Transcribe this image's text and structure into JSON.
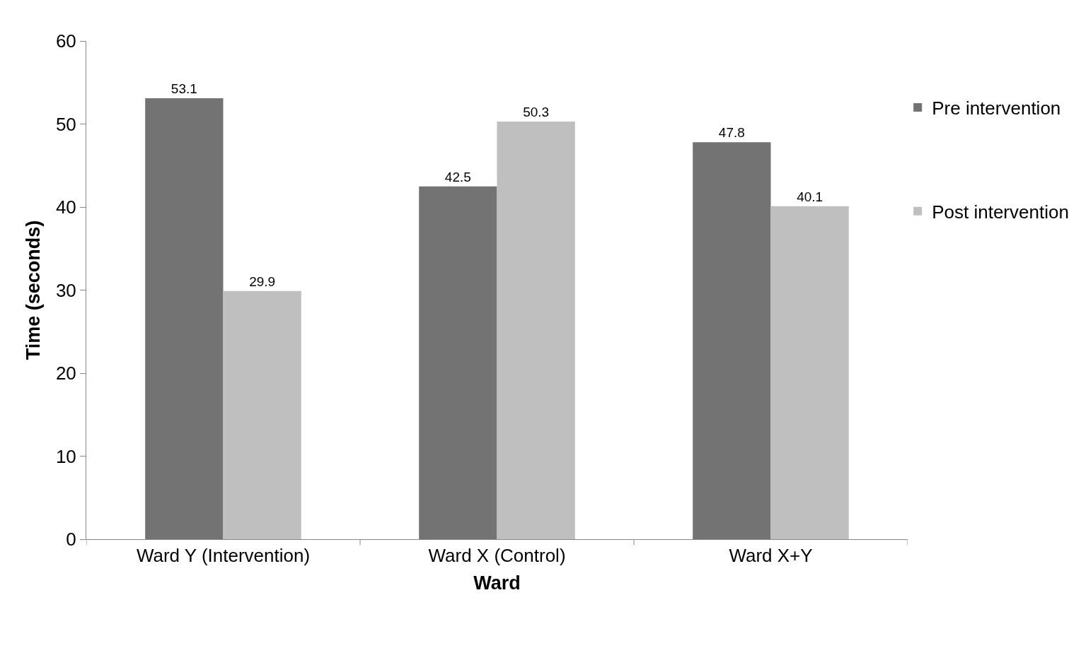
{
  "chart_data": {
    "type": "bar",
    "xlabel": "Ward",
    "ylabel": "Time (seconds)",
    "categories": [
      "Ward Y (Intervention)",
      "Ward X (Control)",
      "Ward X+Y"
    ],
    "series": [
      {
        "name": "Pre intervention",
        "color": "#737373",
        "values": [
          53.1,
          42.5,
          47.8
        ]
      },
      {
        "name": "Post intervention",
        "color": "#bfbfbf",
        "values": [
          29.9,
          50.3,
          40.1
        ]
      }
    ],
    "ylim": [
      0,
      60
    ],
    "yticks": [
      0,
      10,
      20,
      30,
      40,
      50,
      60
    ],
    "legend": "top right",
    "data_labels": true
  }
}
